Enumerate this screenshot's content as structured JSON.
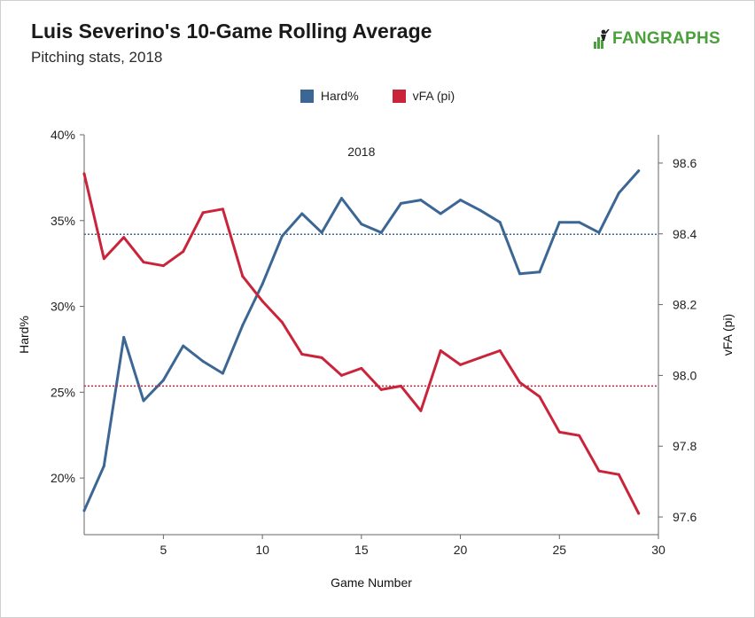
{
  "header": {
    "title": "Luis Severino's 10-Game Rolling Average",
    "subtitle": "Pitching stats, 2018",
    "brand": "FANGRAPHS"
  },
  "colors": {
    "hard": "#3c6795",
    "vfa": "#c9243a",
    "brand": "#4aa13b"
  },
  "chart_data": {
    "type": "line",
    "title": "Luis Severino's 10-Game Rolling Average",
    "subtitle": "Pitching stats, 2018",
    "annotation": "2018",
    "xlabel": "Game Number",
    "ylabel_left": "Hard%",
    "ylabel_right": "vFA (pi)",
    "xlim": [
      1,
      30
    ],
    "ylim_left": [
      16.7,
      40
    ],
    "ylim_right": [
      97.55,
      98.68
    ],
    "x_ticks": [
      5,
      10,
      15,
      20,
      25,
      30
    ],
    "y_ticks_left": [
      20,
      25,
      30,
      35,
      40
    ],
    "y_tick_labels_left": [
      "20%",
      "25%",
      "30%",
      "35%",
      "40%"
    ],
    "y_ticks_right": [
      97.6,
      97.8,
      98.0,
      98.2,
      98.4,
      98.6
    ],
    "y_tick_labels_right": [
      "97.6",
      "97.8",
      "98.0",
      "98.2",
      "98.4",
      "98.6"
    ],
    "legend_position": "top-center",
    "grid": false,
    "x": [
      1,
      2,
      3,
      4,
      5,
      6,
      7,
      8,
      9,
      10,
      11,
      12,
      13,
      14,
      15,
      16,
      17,
      18,
      19,
      20,
      21,
      22,
      23,
      24,
      25,
      26,
      27,
      28,
      29
    ],
    "series": [
      {
        "name": "Hard%",
        "axis": "left",
        "values": [
          18.1,
          20.7,
          28.2,
          24.5,
          25.7,
          27.7,
          26.8,
          26.1,
          28.9,
          31.3,
          34.1,
          35.4,
          34.3,
          36.3,
          34.8,
          34.3,
          36.0,
          36.2,
          35.4,
          36.2,
          35.6,
          34.9,
          31.9,
          32.0,
          34.9,
          34.9,
          34.3,
          36.6,
          37.9
        ],
        "average": 34.2
      },
      {
        "name": "vFA (pi)",
        "axis": "right",
        "values": [
          98.57,
          98.33,
          98.39,
          98.32,
          98.31,
          98.35,
          98.46,
          98.47,
          98.28,
          98.21,
          98.15,
          98.06,
          98.05,
          98.0,
          98.02,
          97.96,
          97.97,
          97.9,
          98.07,
          98.03,
          98.05,
          98.07,
          97.98,
          97.94,
          97.84,
          97.83,
          97.73,
          97.72,
          97.61
        ],
        "average": 97.97
      }
    ]
  }
}
